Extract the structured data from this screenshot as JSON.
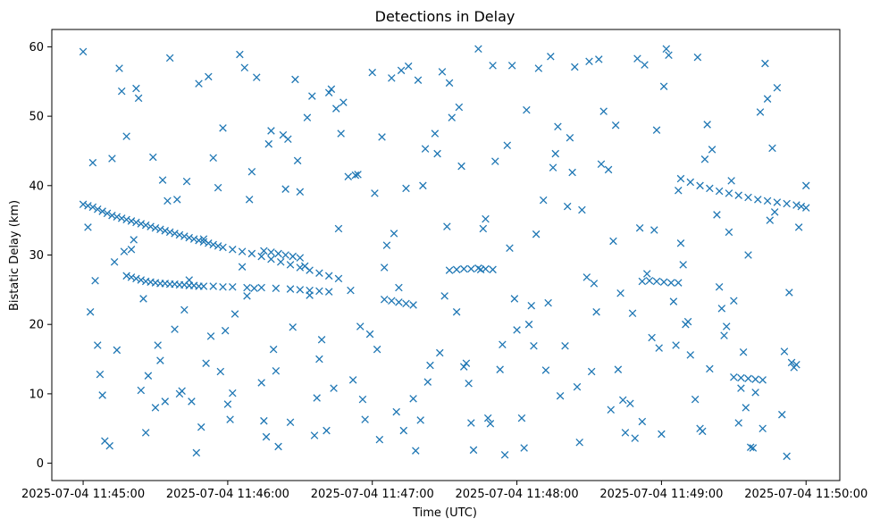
{
  "chart_data": {
    "type": "scatter",
    "title": "Detections in Delay",
    "xlabel": "Time (UTC)",
    "ylabel": "Bistatic Delay (km)",
    "x_is_time": true,
    "xlim": [
      "2025-07-04 11:44:47",
      "2025-07-04 11:50:14"
    ],
    "ylim": [
      -2.5,
      62.5
    ],
    "x_ticks": [
      "2025-07-04 11:45:00",
      "2025-07-04 11:46:00",
      "2025-07-04 11:47:00",
      "2025-07-04 11:48:00",
      "2025-07-04 11:49:00",
      "2025-07-04 11:50:00"
    ],
    "y_ticks": [
      0,
      10,
      20,
      30,
      40,
      50,
      60
    ],
    "grid": false,
    "legend": "none",
    "marker": "x",
    "color": "#1f77b4",
    "series": [
      {
        "x": [
          "2025-07-04 11:45:00",
          "2025-07-04 11:45:02",
          "2025-07-04 11:45:04",
          "2025-07-04 11:45:06",
          "2025-07-04 11:45:08",
          "2025-07-04 11:45:10",
          "2025-07-04 11:45:12",
          "2025-07-04 11:45:14",
          "2025-07-04 11:45:16",
          "2025-07-04 11:45:18",
          "2025-07-04 11:45:20",
          "2025-07-04 11:45:22",
          "2025-07-04 11:45:24",
          "2025-07-04 11:45:26",
          "2025-07-04 11:45:28",
          "2025-07-04 11:45:30",
          "2025-07-04 11:45:32",
          "2025-07-04 11:45:34",
          "2025-07-04 11:45:36",
          "2025-07-04 11:45:38",
          "2025-07-04 11:45:40",
          "2025-07-04 11:45:42",
          "2025-07-04 11:45:44",
          "2025-07-04 11:45:46",
          "2025-07-04 11:45:48",
          "2025-07-04 11:45:50",
          "2025-07-04 11:45:52",
          "2025-07-04 11:45:54",
          "2025-07-04 11:45:56",
          "2025-07-04 11:45:58",
          "2025-07-04 11:46:02",
          "2025-07-04 11:46:06",
          "2025-07-04 11:46:10",
          "2025-07-04 11:46:14",
          "2025-07-04 11:46:18",
          "2025-07-04 11:46:22",
          "2025-07-04 11:46:26",
          "2025-07-04 11:46:30",
          "2025-07-04 11:46:34",
          "2025-07-04 11:46:38",
          "2025-07-04 11:46:42",
          "2025-07-04 11:46:46",
          "2025-07-04 11:45:18",
          "2025-07-04 11:45:20",
          "2025-07-04 11:45:22",
          "2025-07-04 11:45:24",
          "2025-07-04 11:45:26",
          "2025-07-04 11:45:28",
          "2025-07-04 11:45:30",
          "2025-07-04 11:45:32",
          "2025-07-04 11:45:34",
          "2025-07-04 11:45:36",
          "2025-07-04 11:45:38",
          "2025-07-04 11:45:40",
          "2025-07-04 11:45:42",
          "2025-07-04 11:45:44",
          "2025-07-04 11:45:46",
          "2025-07-04 11:45:48",
          "2025-07-04 11:45:50",
          "2025-07-04 11:45:54",
          "2025-07-04 11:45:58",
          "2025-07-04 11:46:02",
          "2025-07-04 11:46:08",
          "2025-07-04 11:46:14",
          "2025-07-04 11:46:20",
          "2025-07-04 11:46:26",
          "2025-07-04 11:46:30",
          "2025-07-04 11:46:34",
          "2025-07-04 11:46:38",
          "2025-07-04 11:46:42",
          "2025-07-04 11:49:08",
          "2025-07-04 11:49:12",
          "2025-07-04 11:49:16",
          "2025-07-04 11:49:20",
          "2025-07-04 11:49:24",
          "2025-07-04 11:49:28",
          "2025-07-04 11:49:32",
          "2025-07-04 11:49:36",
          "2025-07-04 11:49:40",
          "2025-07-04 11:49:44",
          "2025-07-04 11:49:48",
          "2025-07-04 11:49:52",
          "2025-07-04 11:49:56",
          "2025-07-04 11:49:58",
          "2025-07-04 11:50:00",
          "2025-07-04 11:47:32",
          "2025-07-04 11:47:35",
          "2025-07-04 11:47:38",
          "2025-07-04 11:47:41",
          "2025-07-04 11:47:44",
          "2025-07-04 11:47:47",
          "2025-07-04 11:47:50",
          "2025-07-04 11:49:30",
          "2025-07-04 11:49:33",
          "2025-07-04 11:49:36",
          "2025-07-04 11:49:39",
          "2025-07-04 11:49:42",
          "2025-07-04 11:48:52",
          "2025-07-04 11:48:55",
          "2025-07-04 11:48:58",
          "2025-07-04 11:49:01",
          "2025-07-04 11:49:04",
          "2025-07-04 11:49:07",
          "2025-07-04 11:47:05",
          "2025-07-04 11:47:08",
          "2025-07-04 11:47:11",
          "2025-07-04 11:47:14",
          "2025-07-04 11:47:17",
          "2025-07-04 11:46:15",
          "2025-07-04 11:46:18",
          "2025-07-04 11:46:21",
          "2025-07-04 11:46:24",
          "2025-07-04 11:46:27",
          "2025-07-04 11:46:30",
          "2025-07-04 11:45:00",
          "2025-07-04 11:45:09",
          "2025-07-04 11:45:18",
          "2025-07-04 11:45:27",
          "2025-07-04 11:45:36",
          "2025-07-04 11:45:45",
          "2025-07-04 11:45:54",
          "2025-07-04 11:46:03",
          "2025-07-04 11:46:12",
          "2025-07-04 11:46:21",
          "2025-07-04 11:46:30",
          "2025-07-04 11:46:39",
          "2025-07-04 11:46:48",
          "2025-07-04 11:46:57",
          "2025-07-04 11:47:06",
          "2025-07-04 11:47:15",
          "2025-07-04 11:47:24",
          "2025-07-04 11:47:33",
          "2025-07-04 11:47:42",
          "2025-07-04 11:47:51",
          "2025-07-04 11:48:00",
          "2025-07-04 11:48:09",
          "2025-07-04 11:48:18",
          "2025-07-04 11:48:27",
          "2025-07-04 11:48:36",
          "2025-07-04 11:48:45",
          "2025-07-04 11:48:54",
          "2025-07-04 11:49:03",
          "2025-07-04 11:49:12",
          "2025-07-04 11:49:21",
          "2025-07-04 11:49:30",
          "2025-07-04 11:49:39",
          "2025-07-04 11:49:48",
          "2025-07-04 11:49:57",
          "2025-07-04 11:45:04",
          "2025-07-04 11:45:13",
          "2025-07-04 11:45:22",
          "2025-07-04 11:45:31",
          "2025-07-04 11:45:40",
          "2025-07-04 11:45:49",
          "2025-07-04 11:45:58",
          "2025-07-04 11:46:07",
          "2025-07-04 11:46:16",
          "2025-07-04 11:46:25",
          "2025-07-04 11:46:34",
          "2025-07-04 11:46:43",
          "2025-07-04 11:46:52",
          "2025-07-04 11:47:01",
          "2025-07-04 11:47:10",
          "2025-07-04 11:47:19",
          "2025-07-04 11:47:28",
          "2025-07-04 11:47:37",
          "2025-07-04 11:47:46",
          "2025-07-04 11:47:55",
          "2025-07-04 11:48:04",
          "2025-07-04 11:48:13",
          "2025-07-04 11:48:22",
          "2025-07-04 11:48:31",
          "2025-07-04 11:48:40",
          "2025-07-04 11:48:49",
          "2025-07-04 11:48:58",
          "2025-07-04 11:49:07",
          "2025-07-04 11:49:16",
          "2025-07-04 11:49:25",
          "2025-07-04 11:49:34",
          "2025-07-04 11:49:43",
          "2025-07-04 11:49:52",
          "2025-07-04 11:50:00",
          "2025-07-04 11:45:07",
          "2025-07-04 11:45:16",
          "2025-07-04 11:45:25",
          "2025-07-04 11:45:34",
          "2025-07-04 11:45:43",
          "2025-07-04 11:45:52",
          "2025-07-04 11:46:01",
          "2025-07-04 11:46:10",
          "2025-07-04 11:46:19",
          "2025-07-04 11:46:28",
          "2025-07-04 11:46:37",
          "2025-07-04 11:46:46",
          "2025-07-04 11:46:55",
          "2025-07-04 11:47:04",
          "2025-07-04 11:47:13",
          "2025-07-04 11:47:22",
          "2025-07-04 11:47:31",
          "2025-07-04 11:47:40",
          "2025-07-04 11:47:49",
          "2025-07-04 11:47:58",
          "2025-07-04 11:48:07",
          "2025-07-04 11:48:16",
          "2025-07-04 11:48:25",
          "2025-07-04 11:48:34",
          "2025-07-04 11:48:43",
          "2025-07-04 11:48:52",
          "2025-07-04 11:49:01",
          "2025-07-04 11:49:10",
          "2025-07-04 11:49:19",
          "2025-07-04 11:49:28",
          "2025-07-04 11:49:37",
          "2025-07-04 11:49:46",
          "2025-07-04 11:49:55",
          "2025-07-04 11:45:02",
          "2025-07-04 11:45:11",
          "2025-07-04 11:45:20",
          "2025-07-04 11:45:29",
          "2025-07-04 11:45:38",
          "2025-07-04 11:45:47",
          "2025-07-04 11:45:56",
          "2025-07-04 11:46:05",
          "2025-07-04 11:46:14",
          "2025-07-04 11:46:23",
          "2025-07-04 11:46:32",
          "2025-07-04 11:46:41",
          "2025-07-04 11:46:50",
          "2025-07-04 11:46:59",
          "2025-07-04 11:47:08",
          "2025-07-04 11:47:17",
          "2025-07-04 11:47:26",
          "2025-07-04 11:47:35",
          "2025-07-04 11:47:44",
          "2025-07-04 11:47:53",
          "2025-07-04 11:48:02",
          "2025-07-04 11:48:11",
          "2025-07-04 11:48:20",
          "2025-07-04 11:48:29",
          "2025-07-04 11:48:38",
          "2025-07-04 11:48:47",
          "2025-07-04 11:48:56",
          "2025-07-04 11:49:05",
          "2025-07-04 11:49:14",
          "2025-07-04 11:49:23",
          "2025-07-04 11:49:32",
          "2025-07-04 11:49:41",
          "2025-07-04 11:49:50",
          "2025-07-04 11:45:05",
          "2025-07-04 11:45:14",
          "2025-07-04 11:45:23",
          "2025-07-04 11:45:32",
          "2025-07-04 11:45:41",
          "2025-07-04 11:45:50",
          "2025-07-04 11:45:59",
          "2025-07-04 11:46:08",
          "2025-07-04 11:46:17",
          "2025-07-04 11:46:26",
          "2025-07-04 11:46:35",
          "2025-07-04 11:46:44",
          "2025-07-04 11:46:53",
          "2025-07-04 11:47:02",
          "2025-07-04 11:47:11",
          "2025-07-04 11:47:20",
          "2025-07-04 11:47:29",
          "2025-07-04 11:47:38",
          "2025-07-04 11:47:47",
          "2025-07-04 11:47:56",
          "2025-07-04 11:48:05",
          "2025-07-04 11:48:14",
          "2025-07-04 11:48:23",
          "2025-07-04 11:48:32",
          "2025-07-04 11:48:41",
          "2025-07-04 11:48:50",
          "2025-07-04 11:48:59",
          "2025-07-04 11:49:08",
          "2025-07-04 11:49:17",
          "2025-07-04 11:49:26",
          "2025-07-04 11:49:35",
          "2025-07-04 11:49:44",
          "2025-07-04 11:49:53",
          "2025-07-04 11:45:08",
          "2025-07-04 11:45:17",
          "2025-07-04 11:45:26",
          "2025-07-04 11:45:35",
          "2025-07-04 11:45:44",
          "2025-07-04 11:45:53",
          "2025-07-04 11:46:02",
          "2025-07-04 11:46:11",
          "2025-07-04 11:46:20",
          "2025-07-04 11:46:29",
          "2025-07-04 11:46:38",
          "2025-07-04 11:46:47",
          "2025-07-04 11:46:56",
          "2025-07-04 11:47:05",
          "2025-07-04 11:47:14",
          "2025-07-04 11:47:23",
          "2025-07-04 11:47:32",
          "2025-07-04 11:47:41",
          "2025-07-04 11:47:50",
          "2025-07-04 11:47:59",
          "2025-07-04 11:48:08",
          "2025-07-04 11:48:17",
          "2025-07-04 11:48:26",
          "2025-07-04 11:48:35",
          "2025-07-04 11:48:44",
          "2025-07-04 11:48:53",
          "2025-07-04 11:49:02",
          "2025-07-04 11:49:11",
          "2025-07-04 11:49:20",
          "2025-07-04 11:49:29",
          "2025-07-04 11:49:38",
          "2025-07-04 11:49:47",
          "2025-07-04 11:49:56",
          "2025-07-04 11:45:03",
          "2025-07-04 11:45:12",
          "2025-07-04 11:45:21",
          "2025-07-04 11:45:30",
          "2025-07-04 11:45:39",
          "2025-07-04 11:45:48",
          "2025-07-04 11:45:57",
          "2025-07-04 11:46:06",
          "2025-07-04 11:46:15",
          "2025-07-04 11:46:24",
          "2025-07-04 11:46:33",
          "2025-07-04 11:46:42",
          "2025-07-04 11:46:51",
          "2025-07-04 11:47:00",
          "2025-07-04 11:47:09",
          "2025-07-04 11:47:18",
          "2025-07-04 11:47:27",
          "2025-07-04 11:47:36",
          "2025-07-04 11:47:45",
          "2025-07-04 11:47:54",
          "2025-07-04 11:48:03",
          "2025-07-04 11:48:12",
          "2025-07-04 11:48:21",
          "2025-07-04 11:48:30",
          "2025-07-04 11:48:39",
          "2025-07-04 11:48:48",
          "2025-07-04 11:48:57",
          "2025-07-04 11:49:06",
          "2025-07-04 11:49:15",
          "2025-07-04 11:49:24",
          "2025-07-04 11:49:33",
          "2025-07-04 11:49:42",
          "2025-07-04 11:49:51",
          "2025-07-04 11:45:06",
          "2025-07-04 11:45:15",
          "2025-07-04 11:45:24",
          "2025-07-04 11:45:33",
          "2025-07-04 11:45:42",
          "2025-07-04 11:45:51",
          "2025-07-04 11:46:00",
          "2025-07-04 11:46:09",
          "2025-07-04 11:46:18",
          "2025-07-04 11:46:27",
          "2025-07-04 11:46:36",
          "2025-07-04 11:46:45",
          "2025-07-04 11:46:54",
          "2025-07-04 11:47:03",
          "2025-07-04 11:47:12",
          "2025-07-04 11:47:21",
          "2025-07-04 11:47:30",
          "2025-07-04 11:47:39",
          "2025-07-04 11:47:48",
          "2025-07-04 11:47:57",
          "2025-07-04 11:48:06",
          "2025-07-04 11:48:15",
          "2025-07-04 11:48:24",
          "2025-07-04 11:48:33",
          "2025-07-04 11:48:42",
          "2025-07-04 11:48:51",
          "2025-07-04 11:49:00",
          "2025-07-04 11:49:09",
          "2025-07-04 11:49:18",
          "2025-07-04 11:49:27",
          "2025-07-04 11:49:36",
          "2025-07-04 11:49:45",
          "2025-07-04 11:49:54"
        ],
        "y": [
          37.3,
          37.1,
          36.9,
          36.6,
          36.3,
          36.0,
          35.7,
          35.5,
          35.3,
          35.1,
          34.9,
          34.7,
          34.5,
          34.3,
          34.1,
          33.9,
          33.7,
          33.5,
          33.3,
          33.1,
          32.9,
          32.7,
          32.5,
          32.3,
          32.1,
          31.9,
          31.7,
          31.5,
          31.3,
          31.1,
          30.8,
          30.5,
          30.2,
          29.8,
          29.4,
          29.0,
          28.6,
          28.2,
          27.8,
          27.4,
          27.0,
          26.6,
          27.0,
          26.8,
          26.6,
          26.4,
          26.2,
          26.1,
          26.0,
          25.9,
          25.9,
          25.8,
          25.8,
          25.7,
          25.7,
          25.6,
          25.6,
          25.5,
          25.5,
          25.5,
          25.4,
          25.4,
          25.3,
          25.3,
          25.2,
          25.1,
          25.0,
          24.9,
          24.8,
          24.7,
          41.0,
          40.5,
          40.0,
          39.6,
          39.2,
          38.9,
          38.6,
          38.3,
          38.0,
          37.8,
          37.6,
          37.4,
          37.2,
          37.0,
          36.8,
          27.8,
          27.9,
          28.0,
          28.0,
          28.1,
          28.0,
          27.9,
          12.4,
          12.3,
          12.2,
          12.1,
          12.0,
          26.2,
          26.3,
          26.2,
          26.1,
          26.0,
          26.0,
          23.6,
          23.4,
          23.2,
          23.0,
          22.8,
          30.6,
          30.4,
          30.2,
          30.0,
          29.8,
          29.6,
          59.3,
          3.2,
          47.1,
          12.6,
          58.4,
          8.9,
          44.0,
          21.5,
          55.6,
          2.4,
          39.1,
          17.8,
          52.0,
          6.3,
          31.4,
          57.2,
          14.1,
          49.8,
          1.9,
          43.5,
          19.2,
          56.9,
          9.7,
          36.5,
          50.7,
          4.4,
          27.3,
          58.8,
          15.6,
          45.2,
          23.4,
          10.2,
          54.1,
          34.0,
          43.3,
          29.0,
          54.0,
          17.0,
          10.0,
          5.2,
          48.3,
          57.0,
          3.8,
          46.7,
          24.2,
          53.9,
          12.0,
          38.9,
          7.4,
          55.2,
          15.9,
          42.8,
          33.8,
          1.2,
          50.9,
          23.1,
          46.9,
          13.2,
          32.0,
          3.6,
          48.0,
          39.3,
          5.0,
          22.3,
          16.0,
          57.6,
          1.0,
          40.0,
          12.8,
          53.6,
          23.7,
          8.9,
          40.6,
          55.7,
          6.3,
          42.0,
          16.4,
          55.3,
          9.4,
          33.8,
          19.7,
          47.0,
          4.7,
          45.3,
          34.1,
          11.5,
          5.7,
          57.3,
          16.9,
          44.6,
          11.0,
          58.2,
          24.5,
          6.0,
          54.3,
          20.0,
          48.8,
          33.3,
          2.3,
          45.4,
          13.8,
          34.0,
          2.5,
          30.8,
          44.1,
          19.3,
          1.5,
          39.7,
          58.9,
          11.6,
          47.3,
          28.4,
          4.7,
          41.3,
          18.6,
          55.5,
          9.3,
          47.5,
          21.8,
          59.7,
          13.5,
          6.5,
          37.9,
          16.9,
          26.8,
          42.3,
          8.6,
          18.1,
          23.3,
          9.2,
          35.8,
          5.8,
          50.6,
          7.0,
          26.3,
          16.3,
          52.6,
          14.8,
          10.4,
          32.3,
          19.1,
          24.1,
          46.0,
          5.9,
          52.9,
          10.8,
          41.5,
          16.4,
          25.3,
          6.2,
          56.4,
          13.9,
          35.2,
          45.8,
          20.0,
          58.6,
          41.9,
          25.9,
          48.7,
          58.3,
          16.6,
          31.7,
          4.6,
          18.4,
          8.0,
          52.5,
          24.6,
          9.8,
          30.5,
          4.4,
          37.8,
          26.4,
          18.3,
          10.1,
          25.2,
          13.3,
          43.6,
          15.0,
          47.5,
          9.2,
          28.2,
          39.6,
          11.7,
          54.8,
          5.8,
          57.3,
          23.7,
          33.0,
          48.5,
          3.0,
          43.1,
          9.1,
          57.4,
          59.7,
          20.4,
          13.6,
          40.7,
          2.2,
          36.2,
          14.2,
          21.8,
          43.9,
          32.2,
          8.0,
          38.0,
          54.7,
          13.2,
          28.3,
          6.1,
          39.5,
          49.8,
          53.4,
          24.9,
          56.3,
          33.1,
          1.8,
          44.6,
          51.3,
          27.9,
          17.1,
          2.2,
          13.4,
          37.0,
          57.9,
          7.7,
          21.6,
          33.6,
          17.0,
          58.5,
          25.4,
          10.8,
          5.0,
          16.1,
          17.0,
          56.9,
          10.5,
          40.8,
          22.1,
          14.4,
          8.5,
          38.0,
          47.9,
          19.6,
          4.0,
          51.1,
          41.6,
          3.4,
          56.6,
          40.0,
          24.1,
          14.4,
          6.5,
          31.0,
          22.7,
          42.6,
          57.1,
          21.8,
          13.5,
          33.9,
          4.2,
          28.6,
          43.8,
          19.7,
          30.0,
          35.0,
          14.5
        ]
      }
    ]
  }
}
